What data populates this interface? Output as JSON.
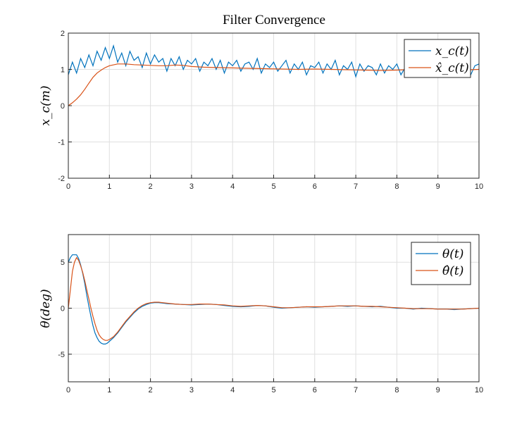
{
  "chart_data": [
    {
      "type": "line",
      "title": "Filter Convergence",
      "xlabel": "",
      "ylabel": "x_c(m)",
      "xlim": [
        0,
        10
      ],
      "ylim": [
        -2,
        2
      ],
      "xticks": [
        "0",
        "1",
        "2",
        "3",
        "4",
        "5",
        "6",
        "7",
        "8",
        "9",
        "10"
      ],
      "yticks": [
        "-2",
        "-1",
        "0",
        "1",
        "2"
      ],
      "grid": true,
      "legend_position": "top-right",
      "series": [
        {
          "name": "x_c(t)",
          "color": "#0072BD",
          "x": [
            0,
            0.1,
            0.2,
            0.3,
            0.4,
            0.5,
            0.6,
            0.7,
            0.8,
            0.9,
            1.0,
            1.1,
            1.2,
            1.3,
            1.4,
            1.5,
            1.6,
            1.7,
            1.8,
            1.9,
            2.0,
            2.1,
            2.2,
            2.3,
            2.4,
            2.5,
            2.6,
            2.7,
            2.8,
            2.9,
            3.0,
            3.1,
            3.2,
            3.3,
            3.4,
            3.5,
            3.6,
            3.7,
            3.8,
            3.9,
            4.0,
            4.1,
            4.2,
            4.3,
            4.4,
            4.5,
            4.6,
            4.7,
            4.8,
            4.9,
            5.0,
            5.1,
            5.2,
            5.3,
            5.4,
            5.5,
            5.6,
            5.7,
            5.8,
            5.9,
            6.0,
            6.1,
            6.2,
            6.3,
            6.4,
            6.5,
            6.6,
            6.7,
            6.8,
            6.9,
            7.0,
            7.1,
            7.2,
            7.3,
            7.4,
            7.5,
            7.6,
            7.7,
            7.8,
            7.9,
            8.0,
            8.1,
            8.2,
            8.3,
            8.4,
            8.5,
            8.6,
            8.7,
            8.8,
            8.9,
            9.0,
            9.1,
            9.2,
            9.3,
            9.4,
            9.5,
            9.6,
            9.7,
            9.8,
            9.9,
            10.0
          ],
          "values": [
            0.85,
            1.2,
            0.9,
            1.3,
            1.05,
            1.4,
            1.1,
            1.5,
            1.25,
            1.6,
            1.3,
            1.65,
            1.2,
            1.45,
            1.1,
            1.5,
            1.25,
            1.35,
            1.05,
            1.45,
            1.15,
            1.4,
            1.2,
            1.3,
            0.95,
            1.3,
            1.1,
            1.35,
            1.0,
            1.25,
            1.15,
            1.3,
            0.95,
            1.2,
            1.1,
            1.3,
            1.0,
            1.25,
            0.9,
            1.2,
            1.1,
            1.25,
            0.95,
            1.15,
            1.2,
            1.0,
            1.3,
            0.9,
            1.15,
            1.05,
            1.2,
            0.95,
            1.1,
            1.25,
            0.9,
            1.15,
            1.0,
            1.2,
            0.85,
            1.1,
            1.05,
            1.2,
            0.9,
            1.15,
            1.0,
            1.25,
            0.85,
            1.1,
            1.0,
            1.2,
            0.8,
            1.15,
            0.95,
            1.1,
            1.05,
            0.85,
            1.15,
            0.9,
            1.1,
            1.0,
            1.15,
            0.85,
            1.05,
            1.1,
            0.9,
            1.0,
            1.15,
            0.85,
            1.05,
            0.95,
            1.1,
            0.85,
            1.0,
            1.1,
            0.9,
            1.05,
            0.95,
            1.1,
            0.85,
            1.1,
            1.15
          ]
        },
        {
          "name": "x̂_c(t)",
          "color": "#D95319",
          "x": [
            0,
            0.1,
            0.2,
            0.3,
            0.4,
            0.5,
            0.6,
            0.7,
            0.8,
            0.9,
            1.0,
            1.2,
            1.4,
            1.6,
            1.8,
            2.0,
            2.2,
            2.4,
            2.6,
            2.8,
            3.0,
            3.3,
            3.6,
            4.0,
            4.4,
            4.8,
            5.2,
            5.6,
            6.0,
            6.4,
            6.8,
            7.2,
            7.6,
            8.0,
            8.4,
            8.8,
            9.2,
            9.6,
            10.0
          ],
          "values": [
            0,
            0.08,
            0.18,
            0.3,
            0.45,
            0.62,
            0.78,
            0.9,
            0.98,
            1.05,
            1.1,
            1.15,
            1.15,
            1.13,
            1.12,
            1.11,
            1.1,
            1.1,
            1.12,
            1.11,
            1.08,
            1.06,
            1.05,
            1.04,
            1.03,
            1.02,
            1.01,
            1.0,
            1.01,
            1.0,
            0.99,
            0.98,
            0.97,
            0.98,
            1.0,
            1.0,
            0.99,
            0.98,
            1.0
          ]
        }
      ]
    },
    {
      "type": "line",
      "title": "",
      "xlabel": "",
      "ylabel": "θ(deg)",
      "xlim": [
        0,
        10
      ],
      "ylim": [
        -8,
        8
      ],
      "xticks": [
        "0",
        "1",
        "2",
        "3",
        "4",
        "5",
        "6",
        "7",
        "8",
        "9",
        "10"
      ],
      "yticks": [
        "-5",
        "0",
        "5"
      ],
      "ytick_values": [
        -5,
        0,
        5
      ],
      "grid": true,
      "legend_position": "top-right",
      "series": [
        {
          "name": "θ(t)",
          "color": "#0072BD",
          "x": [
            0,
            0.05,
            0.1,
            0.15,
            0.2,
            0.25,
            0.3,
            0.35,
            0.4,
            0.45,
            0.5,
            0.55,
            0.6,
            0.65,
            0.7,
            0.75,
            0.8,
            0.85,
            0.9,
            0.95,
            1.0,
            1.1,
            1.2,
            1.3,
            1.4,
            1.5,
            1.6,
            1.7,
            1.8,
            1.9,
            2.0,
            2.1,
            2.2,
            2.3,
            2.4,
            2.6,
            2.8,
            3.0,
            3.2,
            3.4,
            3.6,
            3.8,
            4.0,
            4.2,
            4.4,
            4.6,
            4.8,
            5.0,
            5.2,
            5.4,
            5.6,
            5.8,
            6.0,
            6.2,
            6.4,
            6.6,
            6.8,
            7.0,
            7.2,
            7.4,
            7.6,
            7.8,
            8.0,
            8.2,
            8.4,
            8.6,
            8.8,
            9.0,
            9.2,
            9.4,
            9.6,
            9.8,
            10.0
          ],
          "values": [
            5.0,
            5.5,
            5.8,
            5.8,
            5.8,
            5.4,
            4.7,
            3.8,
            2.7,
            1.4,
            0.2,
            -0.9,
            -1.9,
            -2.7,
            -3.2,
            -3.6,
            -3.8,
            -3.9,
            -3.9,
            -3.8,
            -3.6,
            -3.2,
            -2.7,
            -2.1,
            -1.5,
            -1.0,
            -0.5,
            -0.1,
            0.2,
            0.4,
            0.55,
            0.6,
            0.6,
            0.55,
            0.5,
            0.45,
            0.4,
            0.35,
            0.4,
            0.45,
            0.4,
            0.3,
            0.2,
            0.15,
            0.2,
            0.3,
            0.25,
            0.1,
            0.0,
            0.05,
            0.1,
            0.15,
            0.1,
            0.15,
            0.2,
            0.25,
            0.2,
            0.25,
            0.2,
            0.15,
            0.2,
            0.1,
            0.0,
            0.0,
            -0.1,
            0.0,
            -0.05,
            -0.1,
            -0.1,
            -0.15,
            -0.1,
            -0.05,
            0.0
          ]
        },
        {
          "name": "θ̂(t)",
          "color": "#D95319",
          "x": [
            0,
            0.05,
            0.1,
            0.15,
            0.2,
            0.25,
            0.3,
            0.35,
            0.4,
            0.45,
            0.5,
            0.55,
            0.6,
            0.65,
            0.7,
            0.75,
            0.8,
            0.85,
            0.9,
            0.95,
            1.0,
            1.1,
            1.2,
            1.3,
            1.4,
            1.5,
            1.6,
            1.7,
            1.8,
            1.9,
            2.0,
            2.1,
            2.2,
            2.3,
            2.4,
            2.6,
            2.8,
            3.0,
            3.2,
            3.4,
            3.6,
            3.8,
            4.0,
            4.2,
            4.4,
            4.6,
            4.8,
            5.0,
            5.2,
            5.4,
            5.6,
            5.8,
            6.0,
            6.2,
            6.4,
            6.6,
            6.8,
            7.0,
            7.2,
            7.4,
            7.6,
            7.8,
            8.0,
            8.2,
            8.4,
            8.6,
            8.8,
            9.0,
            9.2,
            9.4,
            9.6,
            9.8,
            10.0
          ],
          "values": [
            0.0,
            2.0,
            4.0,
            5.0,
            5.5,
            5.2,
            4.6,
            3.9,
            3.0,
            2.0,
            1.0,
            0.0,
            -0.9,
            -1.7,
            -2.4,
            -2.9,
            -3.2,
            -3.4,
            -3.5,
            -3.5,
            -3.4,
            -3.1,
            -2.6,
            -2.0,
            -1.4,
            -0.9,
            -0.4,
            0.0,
            0.3,
            0.5,
            0.6,
            0.65,
            0.65,
            0.6,
            0.55,
            0.45,
            0.4,
            0.4,
            0.45,
            0.45,
            0.4,
            0.35,
            0.25,
            0.2,
            0.25,
            0.3,
            0.25,
            0.15,
            0.05,
            0.05,
            0.1,
            0.15,
            0.15,
            0.15,
            0.2,
            0.25,
            0.25,
            0.25,
            0.2,
            0.2,
            0.15,
            0.1,
            0.05,
            0.0,
            -0.05,
            -0.05,
            -0.05,
            -0.1,
            -0.1,
            -0.1,
            -0.1,
            -0.05,
            0.0
          ]
        }
      ]
    }
  ]
}
